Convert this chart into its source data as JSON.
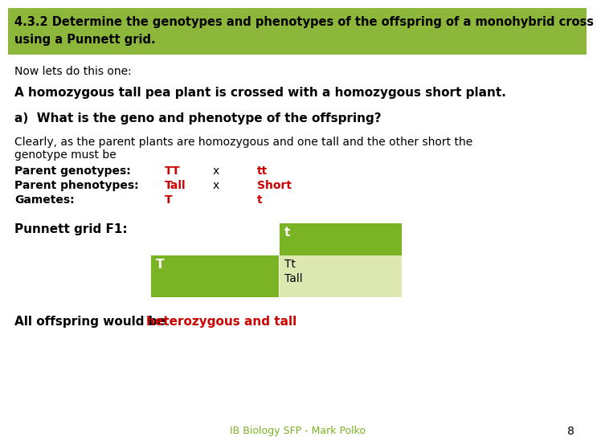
{
  "title_line1": "4.3.2 Determine the genotypes and phenotypes of the offspring of a monohybrid cross",
  "title_line2": "using a Punnett grid.",
  "title_bg": "#8db73a",
  "body_text_1": "Now lets do this one:",
  "body_text_2": "A homozygous tall pea plant is crossed with a homozygous short plant.",
  "body_text_3": "a)  What is the geno and phenotype of the offspring?",
  "body_text_4_line1": "Clearly, as the parent plants are homozygous and one tall and the other short the",
  "body_text_4_line2": "genotype must be",
  "label_parent_geno": "Parent genotypes:",
  "label_parent_pheno": "Parent phenotypes:",
  "label_gametes": "Gametes:",
  "red_col1_geno": "TT",
  "red_col1_pheno": "Tall",
  "red_col1_gamete": "T",
  "x_label": "x",
  "red_col2_geno": "tt",
  "red_col2_pheno": "Short",
  "red_col2_gamete": "t",
  "punnett_label": "Punnett grid F1:",
  "punnett_header_color": "#7ab324",
  "punnett_cell_color": "#dce8b0",
  "punnett_header_t": "t",
  "punnett_row_T": "T",
  "punnett_cell_Tt": "Tt",
  "punnett_cell_Tall": "Tall",
  "conclusion_black": "All offspring would be ",
  "conclusion_red": "heterozygous and tall",
  "footer_text": "IB Biology SFP - Mark Polko",
  "footer_page": "8",
  "bg_color": "#ffffff",
  "text_color": "#000000",
  "red_color": "#cc0000",
  "footer_green": "#7ab324",
  "title_fontsize": 10.5,
  "body_fontsize": 10,
  "bold_fontsize": 11
}
